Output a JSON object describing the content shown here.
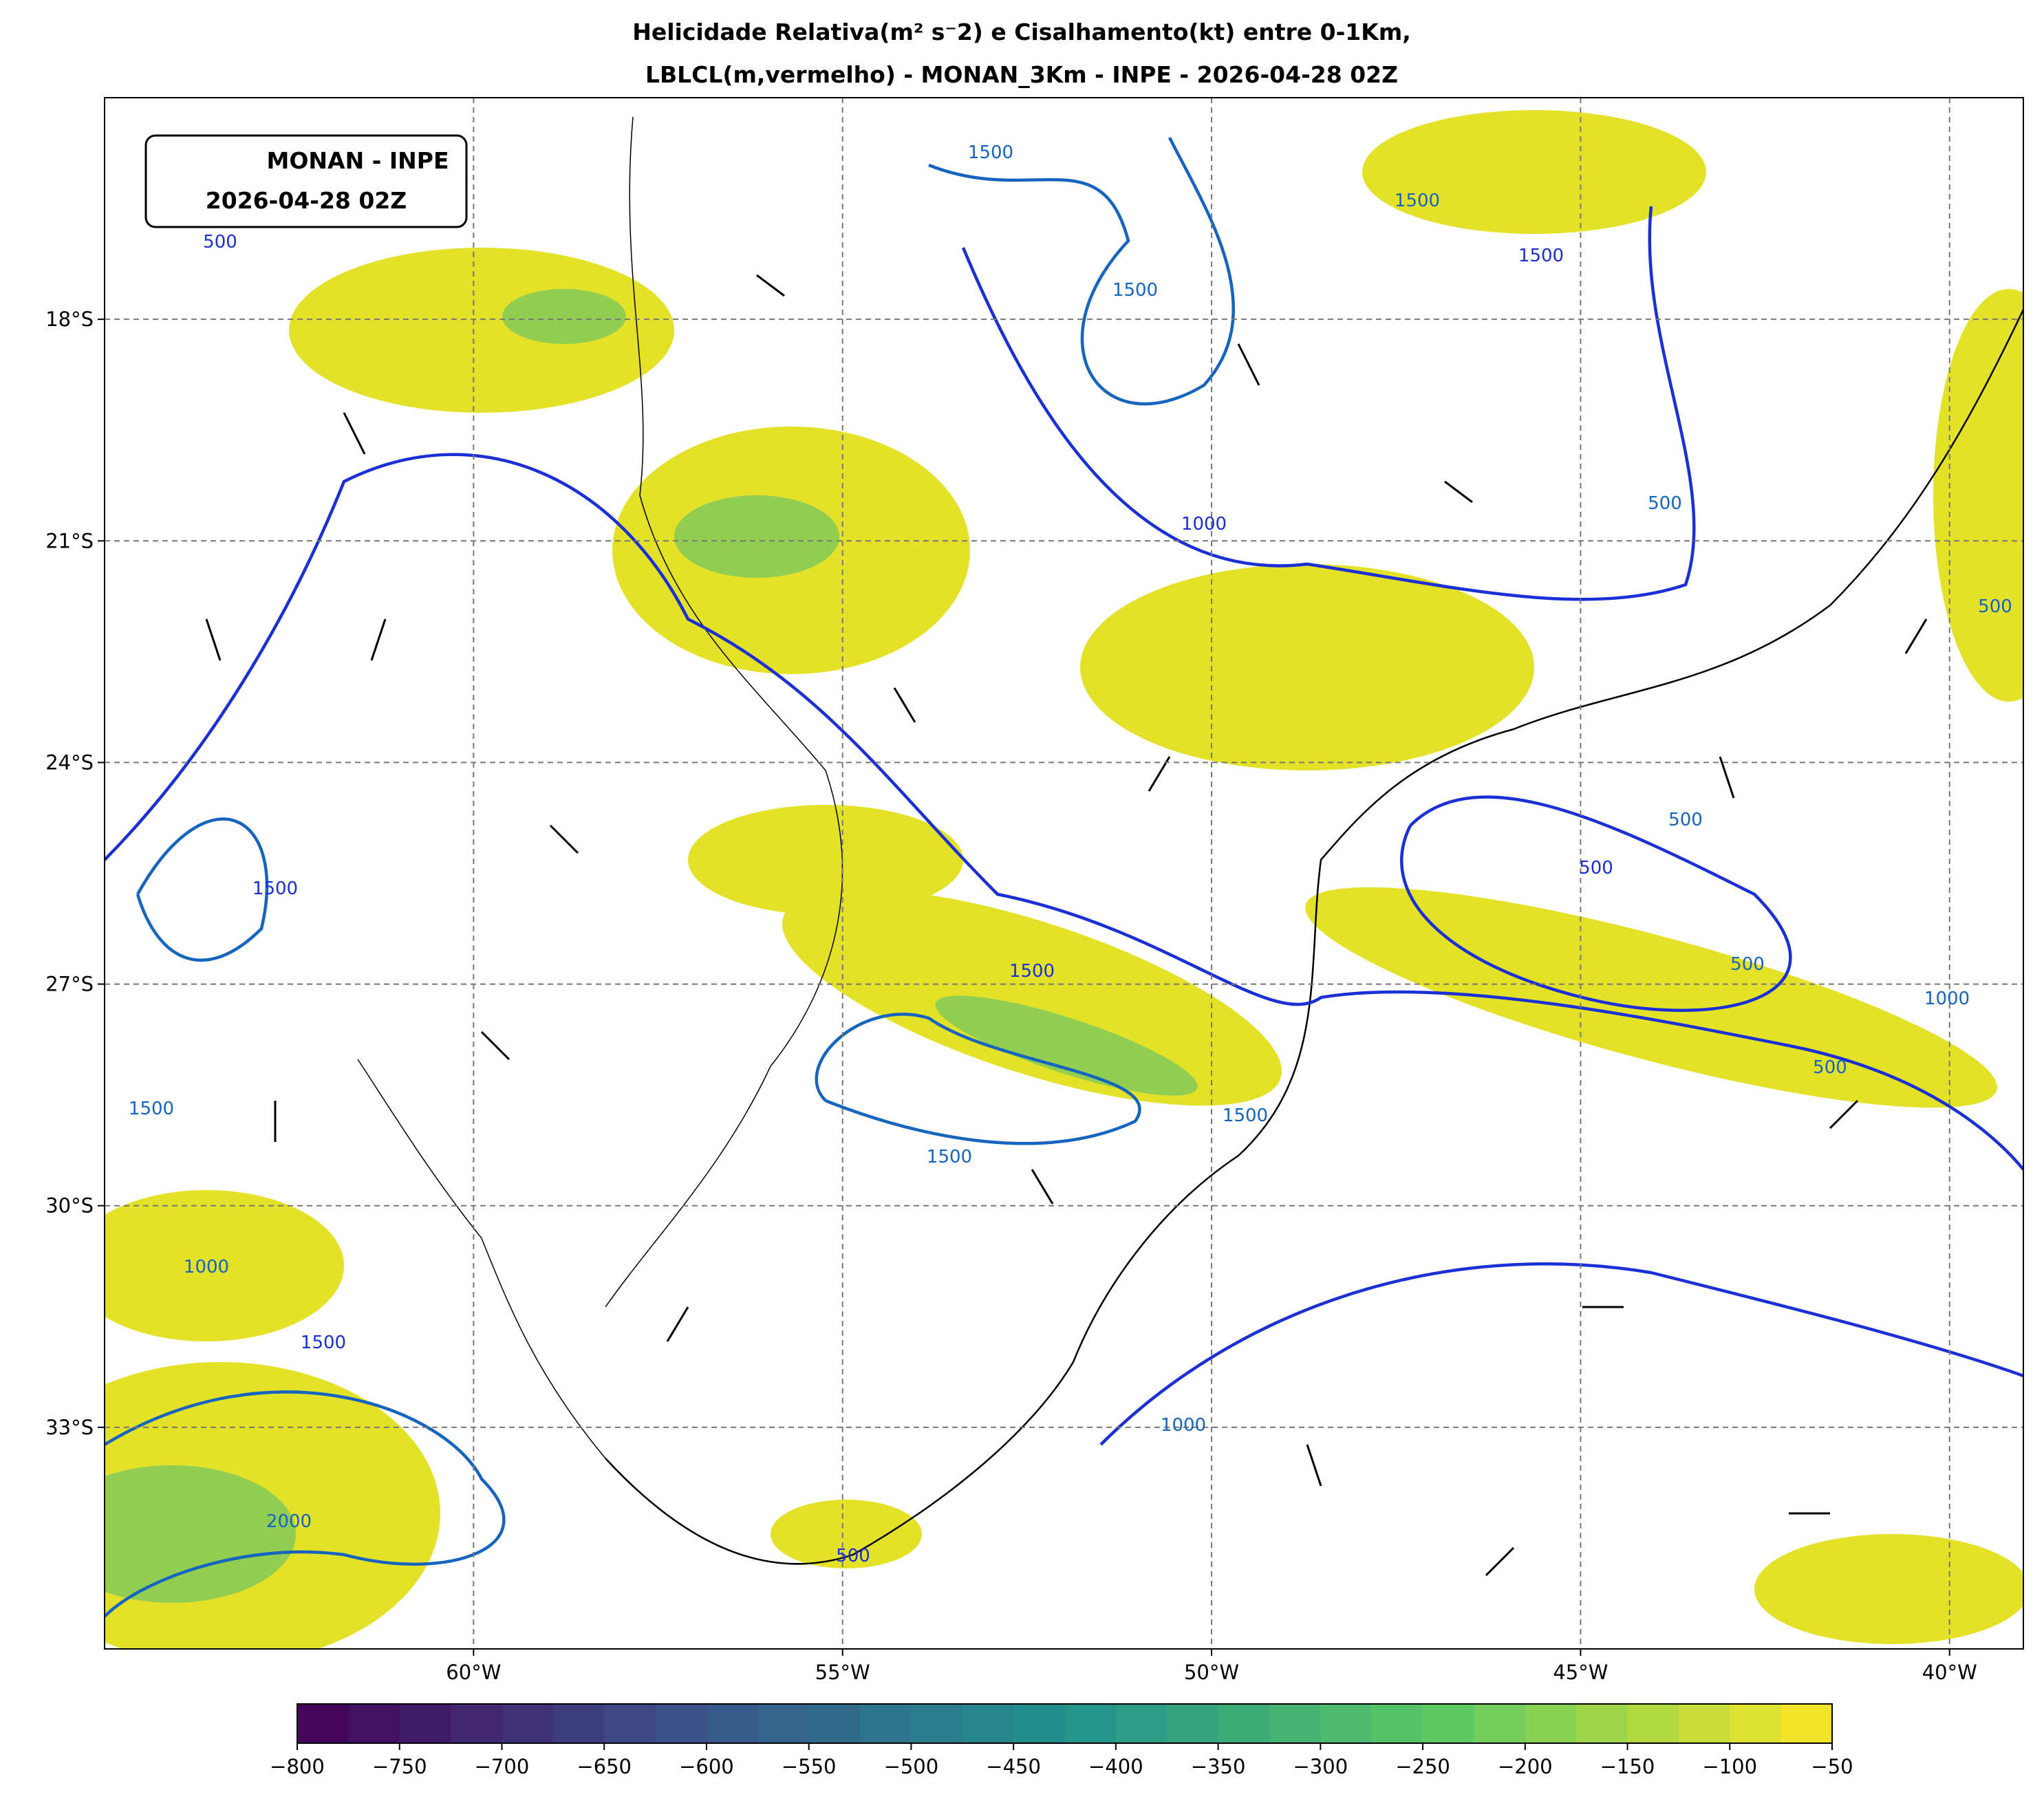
{
  "header": {
    "title_line1": "Helicidade Relativa(m² s⁻2) e Cisalhamento(kt) entre 0-1Km,",
    "title_line2": "LBLCL(m,vermelho) - MONAN_3Km - INPE - 2026-04-28 02Z"
  },
  "badge": {
    "line1": "MONAN - INPE",
    "line2": "2026-04-28 02Z"
  },
  "map": {
    "xlim": [
      -65,
      -39
    ],
    "ylim": [
      -36,
      -15
    ],
    "xticks": [
      {
        "value": -60,
        "label": "60°W"
      },
      {
        "value": -55,
        "label": "55°W"
      },
      {
        "value": -50,
        "label": "50°W"
      },
      {
        "value": -45,
        "label": "45°W"
      },
      {
        "value": -40,
        "label": "40°W"
      }
    ],
    "yticks": [
      {
        "value": -18,
        "label": "18°S"
      },
      {
        "value": -21,
        "label": "21°S"
      },
      {
        "value": -24,
        "label": "24°S"
      },
      {
        "value": -27,
        "label": "27°S"
      },
      {
        "value": -30,
        "label": "30°S"
      },
      {
        "value": -33,
        "label": "33°S"
      }
    ],
    "grid": true,
    "contour_labels": [
      500,
      1500,
      1500,
      1500,
      1500,
      500,
      1000,
      500,
      500,
      500,
      500,
      1000,
      1500,
      1500,
      1500,
      1500,
      1500,
      1000,
      1500,
      2000,
      1000,
      500,
      500
    ]
  },
  "colorbar": {
    "clim": [
      -800,
      -50
    ],
    "ticks": [
      {
        "value": -800,
        "label": "−800"
      },
      {
        "value": -750,
        "label": "−750"
      },
      {
        "value": -700,
        "label": "−700"
      },
      {
        "value": -650,
        "label": "−650"
      },
      {
        "value": -600,
        "label": "−600"
      },
      {
        "value": -550,
        "label": "−550"
      },
      {
        "value": -500,
        "label": "−500"
      },
      {
        "value": -450,
        "label": "−450"
      },
      {
        "value": -400,
        "label": "−400"
      },
      {
        "value": -350,
        "label": "−350"
      },
      {
        "value": -300,
        "label": "−300"
      },
      {
        "value": -250,
        "label": "−250"
      },
      {
        "value": -200,
        "label": "−200"
      },
      {
        "value": -150,
        "label": "−150"
      },
      {
        "value": -100,
        "label": "−100"
      },
      {
        "value": -50,
        "label": "−50"
      }
    ]
  }
}
